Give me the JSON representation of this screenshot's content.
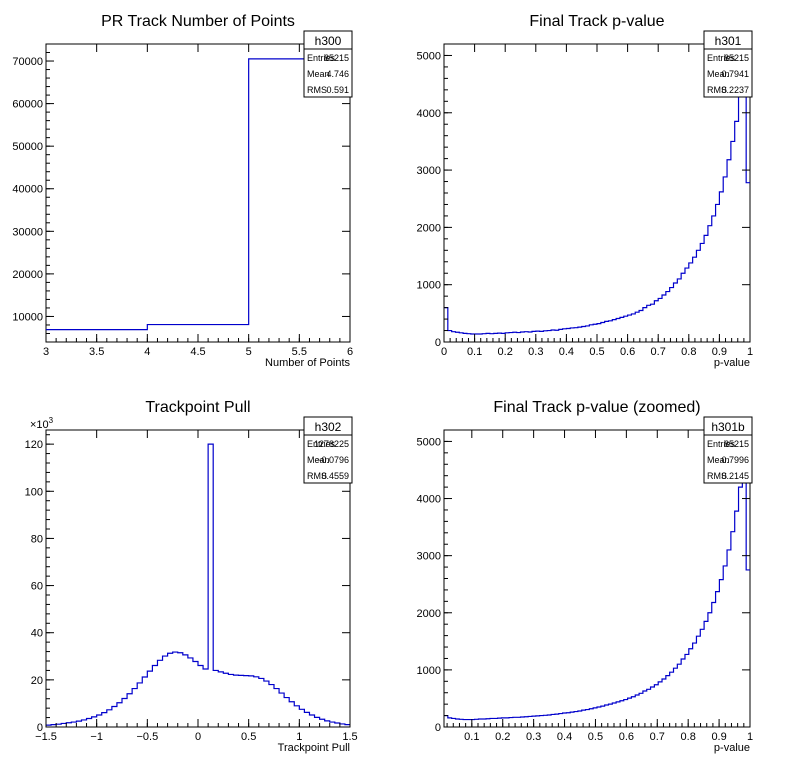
{
  "chart_data": [
    {
      "id": "h300",
      "type": "histogram",
      "title": "PR Track Number of Points",
      "xlabel": "Number of Points",
      "ylabel": "",
      "xlim": [
        3,
        6
      ],
      "ylim": [
        4000,
        74000
      ],
      "x_ticks": [
        3,
        3.5,
        4,
        4.5,
        5,
        5.5,
        6
      ],
      "x_tick_labels": [
        "3",
        "3.5",
        "4",
        "4.5",
        "5",
        "5.5",
        "6"
      ],
      "y_ticks": [
        10000,
        20000,
        30000,
        40000,
        50000,
        60000,
        70000
      ],
      "y_tick_labels": [
        "10000",
        "20000",
        "30000",
        "40000",
        "50000",
        "60000",
        "70000"
      ],
      "y_multiplier": "",
      "bin_edges": [
        3,
        4,
        5,
        6
      ],
      "values": [
        6900,
        8100,
        70500
      ],
      "stats": {
        "name": "h300",
        "rows": [
          {
            "label": "Entries",
            "value": "85215"
          },
          {
            "label": "Mean",
            "value": "4.746"
          },
          {
            "label": "RMS",
            "value": "0.591"
          }
        ]
      }
    },
    {
      "id": "h301",
      "type": "histogram",
      "title": "Final Track p-value",
      "xlabel": "p-value",
      "ylabel": "",
      "xlim": [
        0,
        1
      ],
      "ylim": [
        0,
        5200
      ],
      "x_ticks": [
        0,
        0.1,
        0.2,
        0.3,
        0.4,
        0.5,
        0.6,
        0.7,
        0.8,
        0.9,
        1
      ],
      "x_tick_labels": [
        "0",
        "0.1",
        "0.2",
        "0.3",
        "0.4",
        "0.5",
        "0.6",
        "0.7",
        "0.8",
        "0.9",
        "1"
      ],
      "y_ticks": [
        0,
        1000,
        2000,
        3000,
        4000,
        5000
      ],
      "y_tick_labels": [
        "0",
        "1000",
        "2000",
        "3000",
        "4000",
        "5000"
      ],
      "y_multiplier": "",
      "bin_edges_range": [
        0,
        1
      ],
      "values": [
        600,
        200,
        180,
        170,
        160,
        150,
        145,
        140,
        140,
        140,
        145,
        150,
        145,
        150,
        155,
        150,
        160,
        165,
        170,
        165,
        175,
        180,
        175,
        185,
        190,
        185,
        195,
        200,
        210,
        205,
        220,
        230,
        235,
        245,
        250,
        260,
        270,
        280,
        300,
        310,
        320,
        340,
        360,
        370,
        390,
        410,
        430,
        450,
        470,
        490,
        520,
        550,
        600,
        640,
        660,
        720,
        760,
        820,
        880,
        950,
        1030,
        1100,
        1200,
        1290,
        1380,
        1480,
        1600,
        1720,
        1860,
        2030,
        2200,
        2400,
        2620,
        2880,
        3180,
        3500,
        3850,
        4300,
        5000,
        2780
      ],
      "stats": {
        "name": "h301",
        "rows": [
          {
            "label": "Entries",
            "value": "85215"
          },
          {
            "label": "Mean",
            "value": "0.7941"
          },
          {
            "label": "RMS",
            "value": "0.2237"
          }
        ]
      }
    },
    {
      "id": "h302",
      "type": "histogram",
      "title": "Trackpoint Pull",
      "xlabel": "Trackpoint Pull",
      "ylabel": "",
      "xlim": [
        -1.5,
        1.5
      ],
      "ylim": [
        0,
        126
      ],
      "x_ticks": [
        -1.5,
        -1,
        -0.5,
        0,
        0.5,
        1,
        1.5
      ],
      "x_tick_labels": [
        "−1.5",
        "−1",
        "−0.5",
        "0",
        "0.5",
        "1",
        "1.5"
      ],
      "y_ticks": [
        0,
        20,
        40,
        60,
        80,
        100,
        120
      ],
      "y_tick_labels": [
        "0",
        "20",
        "40",
        "60",
        "80",
        "100",
        "120"
      ],
      "y_multiplier": "×10",
      "y_multiplier_exp": "3",
      "bin_edges_range": [
        -1.5,
        1.5
      ],
      "values": [
        0.8,
        1.0,
        1.2,
        1.5,
        1.8,
        2.1,
        2.5,
        3.0,
        3.6,
        4.3,
        5.1,
        6.1,
        7.3,
        8.7,
        10.3,
        12.1,
        14.1,
        16.3,
        18.7,
        21.2,
        23.7,
        26.1,
        28.3,
        30.1,
        31.3,
        31.8,
        31.5,
        30.6,
        29.3,
        27.8,
        26.1,
        24.6,
        120,
        24.0,
        23.4,
        22.8,
        22.3,
        22.0,
        21.9,
        21.8,
        21.7,
        21.3,
        20.6,
        19.5,
        18.0,
        16.3,
        14.4,
        12.5,
        10.7,
        9.0,
        7.5,
        6.2,
        5.1,
        4.1,
        3.3,
        2.6,
        2.1,
        1.7,
        1.3,
        1.0
      ],
      "stats": {
        "name": "h302",
        "rows": [
          {
            "label": "Entries",
            "value": "1278225"
          },
          {
            "label": "Mean",
            "value": "−0.0796"
          },
          {
            "label": "RMS",
            "value": "0.4559"
          }
        ]
      }
    },
    {
      "id": "h301b",
      "type": "histogram",
      "title": "Final Track p-value (zoomed)",
      "xlabel": "p-value",
      "ylabel": "",
      "xlim": [
        0.01,
        1
      ],
      "ylim": [
        0,
        5200
      ],
      "x_ticks": [
        0.1,
        0.2,
        0.3,
        0.4,
        0.5,
        0.6,
        0.7,
        0.8,
        0.9,
        1
      ],
      "x_tick_labels": [
        "0.1",
        "0.2",
        "0.3",
        "0.4",
        "0.5",
        "0.6",
        "0.7",
        "0.8",
        "0.9",
        "1"
      ],
      "y_ticks": [
        0,
        1000,
        2000,
        3000,
        4000,
        5000
      ],
      "y_tick_labels": [
        "0",
        "1000",
        "2000",
        "3000",
        "4000",
        "5000"
      ],
      "y_multiplier": "",
      "bin_edges_range": [
        0.01,
        1
      ],
      "values": [
        200,
        160,
        150,
        140,
        135,
        130,
        130,
        130,
        135,
        140,
        140,
        145,
        150,
        150,
        155,
        160,
        160,
        165,
        170,
        170,
        175,
        180,
        185,
        190,
        195,
        200,
        205,
        210,
        220,
        225,
        235,
        245,
        250,
        260,
        270,
        280,
        295,
        305,
        320,
        335,
        350,
        365,
        385,
        400,
        420,
        440,
        460,
        480,
        505,
        530,
        560,
        590,
        630,
        660,
        700,
        740,
        790,
        840,
        900,
        960,
        1030,
        1100,
        1190,
        1270,
        1370,
        1470,
        1590,
        1710,
        1850,
        2000,
        2180,
        2370,
        2580,
        2820,
        3100,
        3420,
        3780,
        4200,
        5000,
        2750
      ],
      "stats": {
        "name": "h301b",
        "rows": [
          {
            "label": "Entries",
            "value": "85215"
          },
          {
            "label": "Mean",
            "value": "0.7996"
          },
          {
            "label": "RMS",
            "value": "0.2145"
          }
        ]
      }
    }
  ]
}
